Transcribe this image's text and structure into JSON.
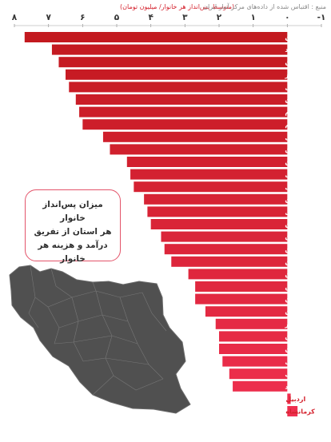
{
  "header": {
    "source": "منبع : اقتباس شده از داده‌های مرکز آمار ایران",
    "unit": "(متوسط پس‌انداز هر خانوار/ میلیون تومان)"
  },
  "callout": {
    "line1": "میزان پس‌انداز خانوار",
    "line2": "هر استان از تفریق",
    "line3": "درآمد و هزینه هر خانوار"
  },
  "chart_data": {
    "type": "bar",
    "orientation": "horizontal",
    "x_direction": "right-to-left",
    "xlim": [
      -1,
      8
    ],
    "ticks": [
      {
        "value": 8,
        "label": "۸"
      },
      {
        "value": 7,
        "label": "۷"
      },
      {
        "value": 6,
        "label": "۶"
      },
      {
        "value": 5,
        "label": "۵"
      },
      {
        "value": 4,
        "label": "۴"
      },
      {
        "value": 3,
        "label": "۳"
      },
      {
        "value": 2,
        "label": "۲"
      },
      {
        "value": 1,
        "label": "۱"
      },
      {
        "value": 0,
        "label": "۰"
      },
      {
        "value": -1,
        "label": "-۱"
      }
    ],
    "categories": [
      "مازندران",
      "یزد",
      "گیلان",
      "البرز",
      "خراسان جنوبی",
      "کرمان",
      "ایلام",
      "قم",
      "آذربایجان شرقی",
      "لرستان",
      "سیستان و بلوچستان",
      "خراسان شمالی",
      "چهارمحال و بختیاری",
      "سمنان",
      "مرکزی",
      "هرمزگان",
      "تهران",
      "قزوین",
      "گلستان",
      "همدان",
      "فارس",
      "اصفهان",
      "خوزستان",
      "بوشهر",
      "زنجان",
      "کردستان",
      "خراسان رضوی",
      "آذربایجان غربی",
      "کهگیلویه و بویراحمد",
      "اردبیل",
      "کرمانشاه"
    ],
    "values": [
      7.7,
      6.9,
      6.7,
      6.5,
      6.4,
      6.2,
      6.1,
      6.0,
      5.4,
      5.2,
      4.7,
      4.6,
      4.5,
      4.2,
      4.1,
      4.0,
      3.7,
      3.6,
      3.4,
      2.9,
      2.7,
      2.7,
      2.4,
      2.1,
      2.0,
      2.0,
      1.9,
      1.7,
      1.6,
      -0.1,
      -0.3
    ]
  },
  "colors": {
    "bar_top": "#c3191f",
    "bar_bottom": "#ef2f4f",
    "text_light": "#ffffff",
    "text_dark": "#d4202c"
  }
}
